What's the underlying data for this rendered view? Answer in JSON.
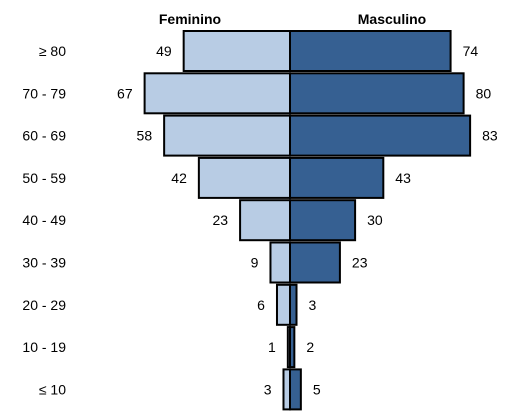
{
  "chart_data": {
    "type": "bar",
    "orientation": "horizontal-population-pyramid",
    "categories": [
      "≥ 80",
      "70 - 79",
      "60 - 69",
      "50 - 59",
      "40 - 49",
      "30 - 39",
      "20 - 29",
      "10 - 19",
      "≤ 10"
    ],
    "series": [
      {
        "name": "Feminino",
        "side": "left",
        "color": "#b8cce4",
        "values": [
          49,
          67,
          58,
          42,
          23,
          9,
          6,
          1,
          3
        ]
      },
      {
        "name": "Masculino",
        "side": "right",
        "color": "#366092",
        "values": [
          74,
          80,
          83,
          43,
          30,
          23,
          3,
          2,
          5
        ]
      }
    ],
    "title": "",
    "xlabel": "",
    "ylabel": "",
    "xlim": [
      0,
      85
    ],
    "grid": false,
    "legend": "top-center",
    "bar_outline_color": "#000000"
  }
}
